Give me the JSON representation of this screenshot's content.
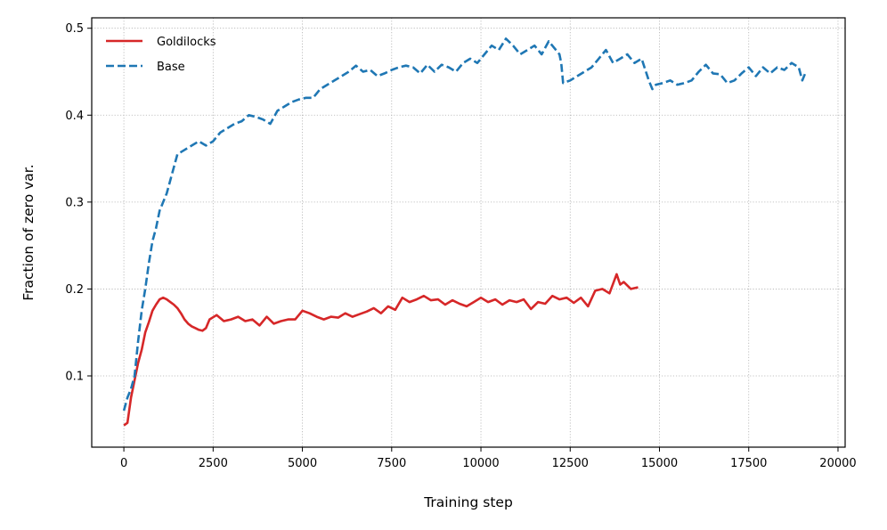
{
  "chart_data": {
    "type": "line",
    "title": "",
    "xlabel": "Training step",
    "ylabel": "Fraction of zero var.",
    "xlim": [
      -900,
      20200
    ],
    "ylim": [
      0.018,
      0.512
    ],
    "xticks": [
      0,
      2500,
      5000,
      7500,
      10000,
      12500,
      15000,
      17500,
      20000
    ],
    "yticks": [
      0.1,
      0.2,
      0.3,
      0.4,
      0.5
    ],
    "grid": true,
    "legend_position": "top-left",
    "series": [
      {
        "name": "Goldilocks",
        "color": "#d62728",
        "style": "solid",
        "x": [
          0,
          100,
          200,
          300,
          400,
          500,
          600,
          700,
          800,
          900,
          1000,
          1100,
          1200,
          1300,
          1400,
          1500,
          1600,
          1700,
          1800,
          1900,
          2000,
          2100,
          2200,
          2300,
          2400,
          2600,
          2800,
          3000,
          3200,
          3400,
          3600,
          3800,
          4000,
          4200,
          4400,
          4600,
          4800,
          5000,
          5200,
          5400,
          5600,
          5800,
          6000,
          6200,
          6400,
          6600,
          6800,
          7000,
          7200,
          7400,
          7600,
          7800,
          8000,
          8200,
          8400,
          8600,
          8800,
          9000,
          9200,
          9400,
          9600,
          9800,
          10000,
          10200,
          10400,
          10600,
          10800,
          11000,
          11200,
          11400,
          11600,
          11800,
          12000,
          12200,
          12400,
          12600,
          12800,
          13000,
          13200,
          13400,
          13600,
          13800,
          13900,
          14000,
          14200,
          14400
        ],
        "y": [
          0.043,
          0.046,
          0.075,
          0.095,
          0.115,
          0.13,
          0.15,
          0.162,
          0.175,
          0.182,
          0.188,
          0.19,
          0.188,
          0.185,
          0.182,
          0.178,
          0.172,
          0.165,
          0.16,
          0.157,
          0.155,
          0.153,
          0.152,
          0.155,
          0.165,
          0.17,
          0.163,
          0.165,
          0.168,
          0.163,
          0.165,
          0.158,
          0.168,
          0.16,
          0.163,
          0.165,
          0.165,
          0.175,
          0.172,
          0.168,
          0.165,
          0.168,
          0.167,
          0.172,
          0.168,
          0.171,
          0.174,
          0.178,
          0.172,
          0.18,
          0.176,
          0.19,
          0.185,
          0.188,
          0.192,
          0.187,
          0.188,
          0.182,
          0.187,
          0.183,
          0.18,
          0.185,
          0.19,
          0.185,
          0.188,
          0.182,
          0.187,
          0.185,
          0.188,
          0.177,
          0.185,
          0.183,
          0.192,
          0.188,
          0.19,
          0.184,
          0.19,
          0.18,
          0.198,
          0.2,
          0.195,
          0.217,
          0.205,
          0.208,
          0.2,
          0.202
        ]
      },
      {
        "name": "Base",
        "color": "#1f77b4",
        "style": "dashed",
        "x": [
          0,
          100,
          200,
          300,
          400,
          500,
          600,
          700,
          800,
          900,
          1000,
          1100,
          1200,
          1300,
          1400,
          1500,
          1700,
          1900,
          2100,
          2300,
          2500,
          2700,
          2900,
          3100,
          3300,
          3500,
          3700,
          3900,
          4100,
          4300,
          4500,
          4700,
          4900,
          5100,
          5300,
          5500,
          5700,
          5900,
          6100,
          6300,
          6500,
          6700,
          6900,
          7100,
          7300,
          7500,
          7700,
          7900,
          8100,
          8300,
          8500,
          8700,
          8900,
          9100,
          9300,
          9500,
          9700,
          9900,
          10100,
          10300,
          10500,
          10700,
          10900,
          11100,
          11300,
          11500,
          11700,
          11900,
          12100,
          12200,
          12250,
          12300,
          12500,
          12700,
          12900,
          13100,
          13300,
          13500,
          13700,
          13900,
          14100,
          14300,
          14500,
          14700,
          14800,
          14900,
          15100,
          15300,
          15500,
          15700,
          15900,
          16100,
          16300,
          16500,
          16700,
          16900,
          17100,
          17300,
          17500,
          17700,
          17900,
          18100,
          18300,
          18500,
          18700,
          18900,
          19000,
          19100
        ],
        "y": [
          0.06,
          0.075,
          0.085,
          0.1,
          0.14,
          0.175,
          0.2,
          0.23,
          0.255,
          0.27,
          0.29,
          0.3,
          0.31,
          0.325,
          0.34,
          0.355,
          0.36,
          0.365,
          0.37,
          0.365,
          0.37,
          0.38,
          0.385,
          0.39,
          0.393,
          0.4,
          0.398,
          0.395,
          0.39,
          0.405,
          0.41,
          0.415,
          0.418,
          0.42,
          0.42,
          0.43,
          0.435,
          0.44,
          0.445,
          0.45,
          0.457,
          0.45,
          0.452,
          0.445,
          0.448,
          0.452,
          0.455,
          0.457,
          0.455,
          0.448,
          0.458,
          0.45,
          0.458,
          0.455,
          0.45,
          0.46,
          0.465,
          0.46,
          0.47,
          0.48,
          0.475,
          0.488,
          0.48,
          0.47,
          0.475,
          0.48,
          0.47,
          0.485,
          0.475,
          0.47,
          0.46,
          0.437,
          0.44,
          0.445,
          0.45,
          0.455,
          0.465,
          0.475,
          0.46,
          0.465,
          0.47,
          0.46,
          0.465,
          0.44,
          0.43,
          0.435,
          0.437,
          0.44,
          0.435,
          0.437,
          0.44,
          0.45,
          0.458,
          0.448,
          0.447,
          0.437,
          0.44,
          0.448,
          0.455,
          0.445,
          0.455,
          0.448,
          0.455,
          0.452,
          0.46,
          0.455,
          0.44,
          0.45
        ]
      }
    ]
  }
}
